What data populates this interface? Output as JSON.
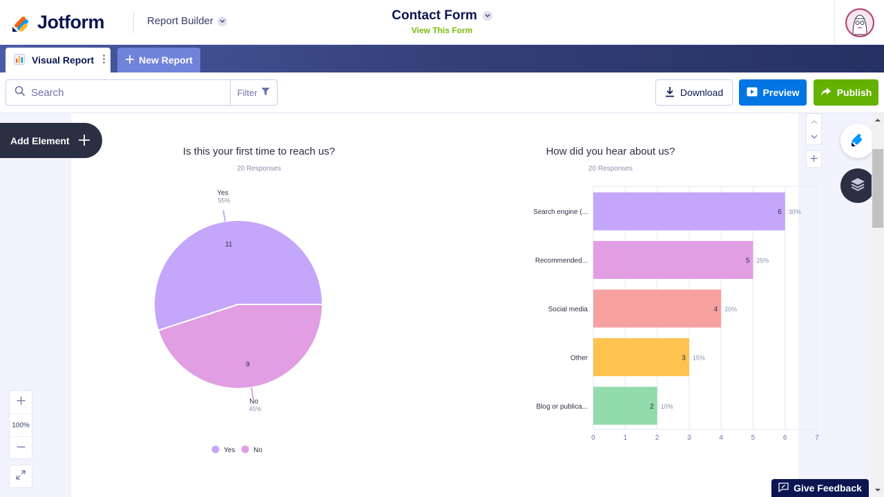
{
  "header": {
    "brand": "Jotform",
    "section": "Report Builder",
    "form_title": "Contact Form",
    "view_link": "View This Form"
  },
  "tabs": {
    "active": "Visual Report",
    "new": "New Report"
  },
  "toolbar": {
    "search_placeholder": "Search",
    "filter_label": "Filter",
    "download_label": "Download",
    "preview_label": "Preview",
    "publish_label": "Publish"
  },
  "canvas": {
    "add_element_label": "Add Element",
    "zoom_level": "100%",
    "feedback_label": "Give Feedback"
  },
  "colors": {
    "brand_navy": "#0a1551",
    "preview_blue": "#0075e3",
    "publish_green": "#64b200",
    "view_link_green": "#78bb07"
  },
  "icons": [
    "jotform-logo-icon",
    "chevron-down-icon",
    "avatar",
    "chart-icon",
    "more-vertical-icon",
    "plus-icon",
    "search-icon",
    "filter-icon",
    "download-icon",
    "play-icon",
    "share-arrow-icon",
    "chevron-up-icon",
    "jotform-pen-icon",
    "layers-icon",
    "expand-icon",
    "feedback-icon"
  ],
  "chart_data": [
    {
      "type": "pie",
      "title": "Is this your first time to reach us?",
      "subtitle": "20 Responses",
      "slices": [
        {
          "label": "Yes",
          "value": 11,
          "percent": "55%",
          "color": "#c4a6fb"
        },
        {
          "label": "No",
          "value": 9,
          "percent": "45%",
          "color": "#e19ee2"
        }
      ],
      "legend": [
        "Yes",
        "No"
      ],
      "legend_position": "bottom"
    },
    {
      "type": "bar",
      "orientation": "horizontal",
      "title": "How did you hear about us?",
      "subtitle": "20 Responses",
      "categories": [
        "Search engine (...",
        "Recommended...",
        "Social media",
        "Other",
        "Blog or publica..."
      ],
      "values": [
        6,
        5,
        4,
        3,
        2
      ],
      "percents": [
        "30%",
        "25%",
        "20%",
        "15%",
        "10%"
      ],
      "colors": [
        "#c4a6fb",
        "#e19ee2",
        "#f7a0a0",
        "#fec24e",
        "#92dbab"
      ],
      "xlim": [
        0,
        7
      ],
      "xticks": [
        0,
        1,
        2,
        3,
        4,
        5,
        6,
        7
      ],
      "grid": true
    }
  ]
}
